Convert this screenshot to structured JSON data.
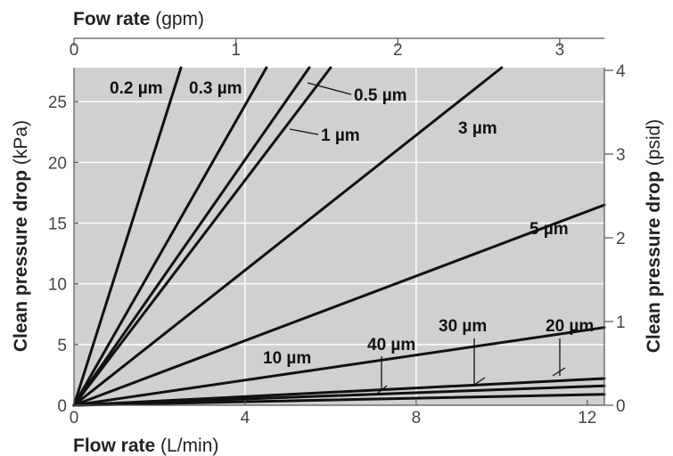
{
  "chart_data": {
    "type": "line",
    "top_axis": {
      "label_bold": "Fow rate",
      "label_unit": "(gpm)",
      "ticks": [
        "0",
        "1",
        "2",
        "3"
      ],
      "tick_values": [
        0,
        1,
        2,
        3
      ]
    },
    "bottom_axis": {
      "label_bold": "Flow rate",
      "label_unit": "(L/min)",
      "ticks": [
        "0",
        "4",
        "8",
        "12"
      ],
      "tick_values": [
        0,
        4,
        8,
        12
      ],
      "range": [
        0,
        12.4
      ]
    },
    "left_axis": {
      "label_bold": "Clean pressure drop",
      "label_unit": "(kPa)",
      "ticks": [
        "0",
        "5",
        "10",
        "15",
        "20",
        "25"
      ],
      "tick_values": [
        0,
        5,
        10,
        15,
        20,
        25
      ],
      "range": [
        0,
        27.8
      ]
    },
    "right_axis": {
      "label_bold": "Clean pressure drop",
      "label_unit": "(psid)",
      "ticks": [
        "0",
        "1",
        "2",
        "3",
        "4"
      ],
      "tick_values": [
        0,
        1,
        2,
        3,
        4
      ]
    },
    "grid": true,
    "series": [
      {
        "name": "0.2 µm",
        "x": [
          0,
          2.5
        ],
        "y": [
          0,
          27.8
        ]
      },
      {
        "name": "0.3 µm",
        "x": [
          0,
          4.5
        ],
        "y": [
          0,
          27.8
        ]
      },
      {
        "name": "0.5 µm",
        "x": [
          0,
          5.5
        ],
        "y": [
          0,
          27.8
        ]
      },
      {
        "name": "1 µm",
        "x": [
          0,
          6.0
        ],
        "y": [
          0,
          27.8
        ]
      },
      {
        "name": "3 µm",
        "x": [
          0,
          10.0
        ],
        "y": [
          0,
          27.8
        ]
      },
      {
        "name": "5 µm",
        "x": [
          0,
          12.4
        ],
        "y": [
          0,
          16.5
        ]
      },
      {
        "name": "10 µm",
        "x": [
          0,
          12.4
        ],
        "y": [
          0,
          6.4
        ]
      },
      {
        "name": "20 µm",
        "x": [
          0,
          12.4
        ],
        "y": [
          0,
          2.2
        ]
      },
      {
        "name": "30 µm",
        "x": [
          0,
          12.4
        ],
        "y": [
          0,
          1.6
        ]
      },
      {
        "name": "40 µm",
        "x": [
          0,
          12.4
        ],
        "y": [
          0,
          0.9
        ]
      }
    ]
  },
  "colors": {
    "plot_background": "#d0d0d0",
    "grid": "#ffffff",
    "series_line": "#111111"
  }
}
